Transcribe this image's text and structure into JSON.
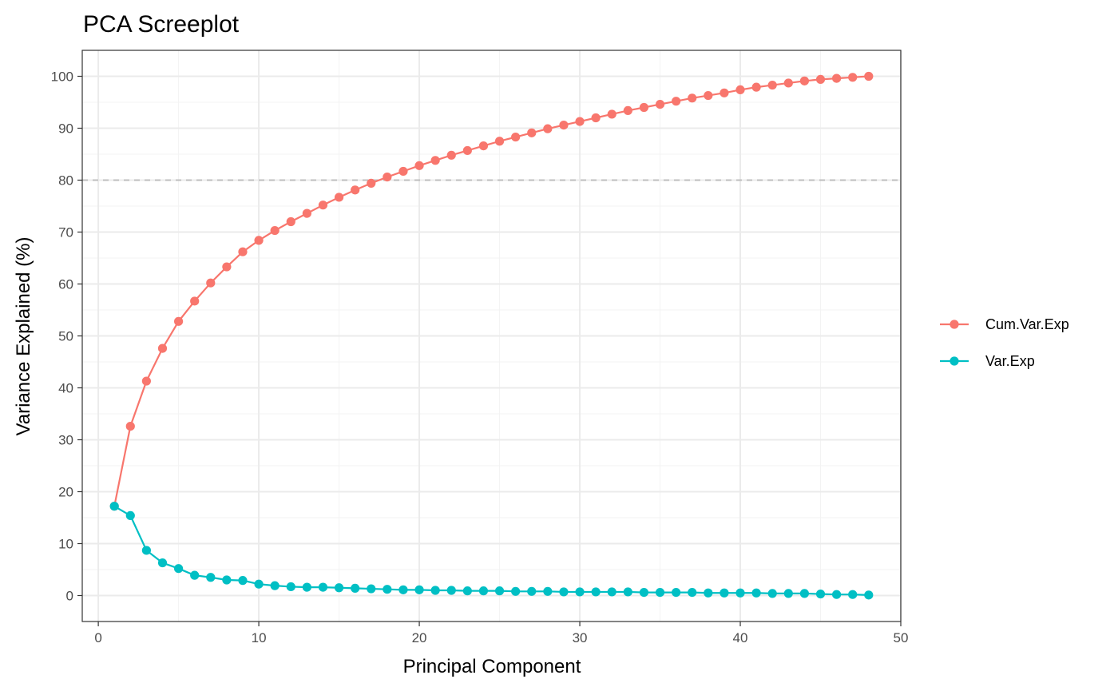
{
  "chart_data": {
    "type": "line",
    "title": "PCA Screeplot",
    "xlabel": "Principal Component",
    "ylabel": "Variance Explained (%)",
    "xlim": [
      -1,
      50
    ],
    "ylim": [
      -5,
      105
    ],
    "x_ticks": [
      0,
      10,
      20,
      30,
      40,
      50
    ],
    "y_ticks": [
      0,
      10,
      20,
      30,
      40,
      50,
      60,
      70,
      80,
      90,
      100
    ],
    "x_tick_labels": [
      "0",
      "10",
      "20",
      "30",
      "40",
      "50"
    ],
    "y_tick_labels": [
      "0",
      "10",
      "20",
      "30",
      "40",
      "50",
      "60",
      "70",
      "80",
      "90",
      "100"
    ],
    "grid": true,
    "legend_position": "right",
    "reference_line": {
      "y": 80,
      "style": "dashed",
      "color": "#bebebe"
    },
    "x": [
      1,
      2,
      3,
      4,
      5,
      6,
      7,
      8,
      9,
      10,
      11,
      12,
      13,
      14,
      15,
      16,
      17,
      18,
      19,
      20,
      21,
      22,
      23,
      24,
      25,
      26,
      27,
      28,
      29,
      30,
      31,
      32,
      33,
      34,
      35,
      36,
      37,
      38,
      39,
      40,
      41,
      42,
      43,
      44,
      45,
      46,
      47,
      48
    ],
    "series": [
      {
        "name": "Cum.Var.Exp",
        "color": "#F8766D",
        "values": [
          17.2,
          32.6,
          41.3,
          47.6,
          52.8,
          56.7,
          60.2,
          63.3,
          66.2,
          68.4,
          70.3,
          72.0,
          73.6,
          75.2,
          76.7,
          78.1,
          79.4,
          80.6,
          81.7,
          82.8,
          83.8,
          84.8,
          85.7,
          86.6,
          87.5,
          88.3,
          89.1,
          89.9,
          90.6,
          91.3,
          92.0,
          92.7,
          93.4,
          94.0,
          94.6,
          95.2,
          95.8,
          96.3,
          96.8,
          97.4,
          97.9,
          98.3,
          98.7,
          99.1,
          99.4,
          99.6,
          99.8,
          100.0
        ]
      },
      {
        "name": "Var.Exp",
        "color": "#00BFC4",
        "values": [
          17.2,
          15.4,
          8.7,
          6.3,
          5.2,
          3.9,
          3.5,
          3.0,
          2.9,
          2.2,
          1.9,
          1.7,
          1.6,
          1.6,
          1.5,
          1.4,
          1.3,
          1.2,
          1.1,
          1.1,
          1.0,
          1.0,
          0.9,
          0.9,
          0.9,
          0.8,
          0.8,
          0.8,
          0.7,
          0.7,
          0.7,
          0.7,
          0.7,
          0.6,
          0.6,
          0.6,
          0.6,
          0.5,
          0.5,
          0.5,
          0.5,
          0.4,
          0.4,
          0.4,
          0.3,
          0.2,
          0.2,
          0.1
        ]
      }
    ]
  }
}
